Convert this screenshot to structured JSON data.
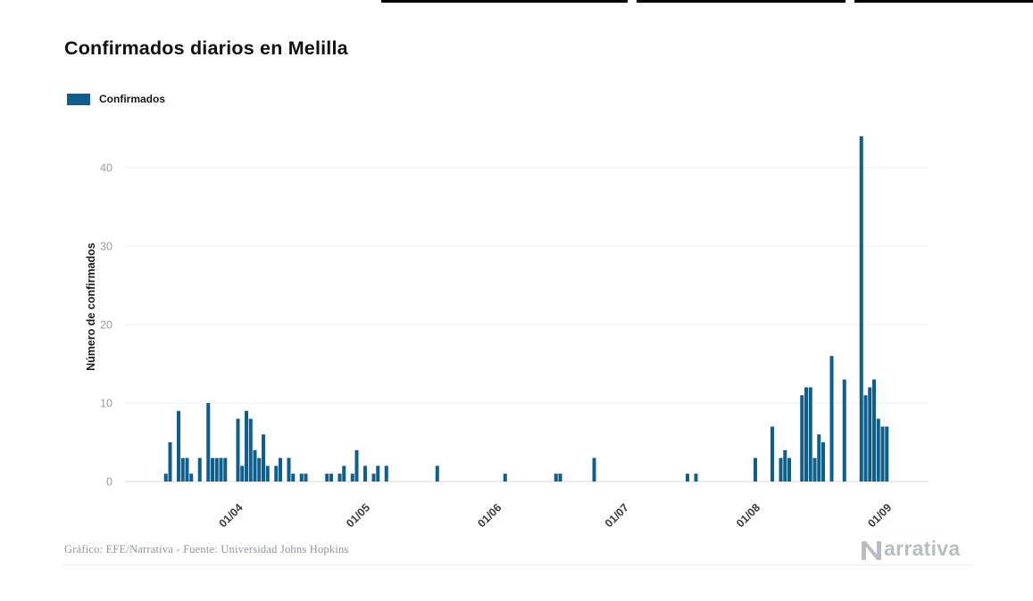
{
  "page": {
    "title": "Confirmados diarios en Melilla",
    "legend": {
      "label": "Confirmados"
    },
    "footer": {
      "credit": "Gráfico: EFE/Narrativa - Fuente: Universidad Johns Hopkins",
      "brand_full": "Narrativa",
      "brand_icon": "narrativa-n-icon",
      "brand_text_after_icon": "arrativa"
    }
  },
  "chart_data": {
    "type": "bar",
    "title": "Confirmados diarios en Melilla",
    "series_name": "Confirmados",
    "xlabel": "",
    "ylabel": "Número de confirmados",
    "ylim": [
      0,
      45
    ],
    "yticks": [
      0,
      10,
      20,
      30,
      40
    ],
    "grid": "horizontal",
    "legend_position": "top-left",
    "bar_color": "#0e5f8c",
    "x_unit": "day",
    "start_day_label": "06/03",
    "num_days": 186,
    "xticks": [
      {
        "label": "01/04",
        "day": 26
      },
      {
        "label": "01/05",
        "day": 56
      },
      {
        "label": "01/06",
        "day": 87
      },
      {
        "label": "01/07",
        "day": 117
      },
      {
        "label": "01/08",
        "day": 148
      },
      {
        "label": "01/09",
        "day": 179
      }
    ],
    "points": [
      {
        "day": 9,
        "value": 1
      },
      {
        "day": 10,
        "value": 5
      },
      {
        "day": 12,
        "value": 9
      },
      {
        "day": 13,
        "value": 3
      },
      {
        "day": 14,
        "value": 3
      },
      {
        "day": 15,
        "value": 1
      },
      {
        "day": 17,
        "value": 3
      },
      {
        "day": 19,
        "value": 10
      },
      {
        "day": 20,
        "value": 3
      },
      {
        "day": 21,
        "value": 3
      },
      {
        "day": 22,
        "value": 3
      },
      {
        "day": 23,
        "value": 3
      },
      {
        "day": 26,
        "value": 8
      },
      {
        "day": 27,
        "value": 2
      },
      {
        "day": 28,
        "value": 9
      },
      {
        "day": 29,
        "value": 8
      },
      {
        "day": 30,
        "value": 4
      },
      {
        "day": 31,
        "value": 3
      },
      {
        "day": 32,
        "value": 6
      },
      {
        "day": 33,
        "value": 2
      },
      {
        "day": 35,
        "value": 2
      },
      {
        "day": 36,
        "value": 3
      },
      {
        "day": 38,
        "value": 3
      },
      {
        "day": 39,
        "value": 1
      },
      {
        "day": 41,
        "value": 1
      },
      {
        "day": 42,
        "value": 1
      },
      {
        "day": 47,
        "value": 1
      },
      {
        "day": 48,
        "value": 1
      },
      {
        "day": 50,
        "value": 1
      },
      {
        "day": 51,
        "value": 2
      },
      {
        "day": 53,
        "value": 1
      },
      {
        "day": 54,
        "value": 4
      },
      {
        "day": 56,
        "value": 2
      },
      {
        "day": 58,
        "value": 1
      },
      {
        "day": 59,
        "value": 2
      },
      {
        "day": 61,
        "value": 2
      },
      {
        "day": 73,
        "value": 2
      },
      {
        "day": 89,
        "value": 1
      },
      {
        "day": 101,
        "value": 1
      },
      {
        "day": 102,
        "value": 1
      },
      {
        "day": 110,
        "value": 3
      },
      {
        "day": 132,
        "value": 1
      },
      {
        "day": 134,
        "value": 1
      },
      {
        "day": 148,
        "value": 3
      },
      {
        "day": 152,
        "value": 7
      },
      {
        "day": 154,
        "value": 3
      },
      {
        "day": 155,
        "value": 4
      },
      {
        "day": 156,
        "value": 3
      },
      {
        "day": 159,
        "value": 11
      },
      {
        "day": 160,
        "value": 12
      },
      {
        "day": 161,
        "value": 12
      },
      {
        "day": 162,
        "value": 3
      },
      {
        "day": 163,
        "value": 6
      },
      {
        "day": 164,
        "value": 5
      },
      {
        "day": 166,
        "value": 16
      },
      {
        "day": 169,
        "value": 13
      },
      {
        "day": 173,
        "value": 44
      },
      {
        "day": 174,
        "value": 11
      },
      {
        "day": 175,
        "value": 12
      },
      {
        "day": 176,
        "value": 13
      },
      {
        "day": 177,
        "value": 8
      },
      {
        "day": 178,
        "value": 7
      },
      {
        "day": 179,
        "value": 7
      }
    ]
  }
}
